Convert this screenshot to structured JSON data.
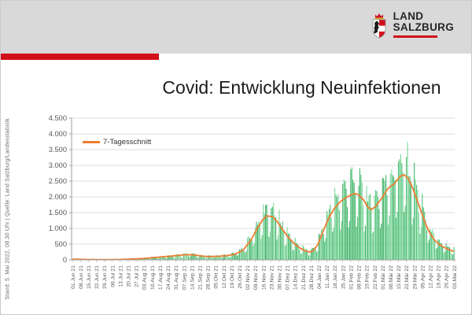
{
  "header": {
    "logo_line1": "LAND",
    "logo_line2": "SALZBURG",
    "brand_red": "#d2101a",
    "band_color": "#d9d9d9"
  },
  "title": "Covid: Entwicklung Neuinfektionen",
  "source_note": "Stand: 5. Mai 2022, 08.30 Uhr | Quelle: Land Salzburg/Landesstatistik",
  "chart_data": {
    "type": "bar",
    "title": "Covid: Entwicklung Neuinfektionen",
    "xlabel": "",
    "ylabel": "",
    "ylim": [
      0,
      4500
    ],
    "ytick_step": 500,
    "ytick_labels": [
      "0",
      "500",
      "1.000",
      "1.500",
      "2.000",
      "2.500",
      "3.000",
      "3.500",
      "4.000",
      "4.500"
    ],
    "grid": true,
    "legend": [
      "7-Tagesschnitt"
    ],
    "legend_position": "top-left",
    "x_start": "01.Jun 21",
    "x_end": "03.Mai 22",
    "num_days": 337,
    "xtick_labels": [
      "01.Jun 21",
      "08.Jun 21",
      "15.Jun 21",
      "22.Jun 21",
      "29.Jun 21",
      "06.Jul 21",
      "13.Jul 21",
      "20.Jul 21",
      "27.Jul 21",
      "03.Aug 21",
      "10.Aug 21",
      "17.Aug 21",
      "24.Aug 21",
      "31.Aug 21",
      "07.Sep 21",
      "14.Sep 21",
      "21.Sep 21",
      "28.Sep 21",
      "05.Okt 21",
      "12.Okt 21",
      "19.Okt 21",
      "26.Okt 21",
      "02.Nov 21",
      "09.Nov 21",
      "16.Nov 21",
      "23.Nov 21",
      "30.Nov 21",
      "07.Dez 21",
      "14.Dez 21",
      "21.Dez 21",
      "28.Dez 21",
      "04.Jan 22",
      "11.Jan 22",
      "18.Jan 22",
      "25.Jan 22",
      "01.Feb 22",
      "08.Feb 22",
      "15.Feb 22",
      "22.Feb 22",
      "01.Mär 22",
      "08.Mär 22",
      "15.Mär 22",
      "22.Mär 22",
      "29.Mär 22",
      "05.Apr 22",
      "12.Apr 22",
      "19.Apr 22",
      "26.Apr 22",
      "03.Mai 22"
    ],
    "series": [
      {
        "name": "",
        "type": "bar",
        "color": "#53c378"
      },
      {
        "name": "7-Tagesschnitt",
        "type": "line",
        "color": "#ED7D31"
      }
    ],
    "bar_colors": [
      "#3fb266",
      "#55c47b",
      "#7fd79c"
    ],
    "line_keypoints_day_value": [
      [
        0,
        25
      ],
      [
        7,
        18
      ],
      [
        14,
        12
      ],
      [
        21,
        10
      ],
      [
        30,
        8
      ],
      [
        40,
        12
      ],
      [
        50,
        25
      ],
      [
        61,
        40
      ],
      [
        70,
        70
      ],
      [
        80,
        100
      ],
      [
        92,
        135
      ],
      [
        99,
        165
      ],
      [
        106,
        160
      ],
      [
        113,
        125
      ],
      [
        120,
        105
      ],
      [
        129,
        115
      ],
      [
        136,
        135
      ],
      [
        143,
        180
      ],
      [
        150,
        300
      ],
      [
        157,
        620
      ],
      [
        162,
        950
      ],
      [
        167,
        1250
      ],
      [
        171,
        1400
      ],
      [
        176,
        1370
      ],
      [
        180,
        1230
      ],
      [
        185,
        960
      ],
      [
        190,
        720
      ],
      [
        195,
        520
      ],
      [
        200,
        380
      ],
      [
        205,
        285
      ],
      [
        209,
        250
      ],
      [
        212,
        290
      ],
      [
        216,
        480
      ],
      [
        220,
        850
      ],
      [
        225,
        1280
      ],
      [
        230,
        1600
      ],
      [
        235,
        1820
      ],
      [
        240,
        1960
      ],
      [
        245,
        2060
      ],
      [
        249,
        2110
      ],
      [
        252,
        2060
      ],
      [
        256,
        1920
      ],
      [
        260,
        1680
      ],
      [
        263,
        1590
      ],
      [
        267,
        1700
      ],
      [
        273,
        1990
      ],
      [
        277,
        2230
      ],
      [
        280,
        2340
      ],
      [
        283,
        2400
      ],
      [
        286,
        2540
      ],
      [
        289,
        2660
      ],
      [
        292,
        2700
      ],
      [
        295,
        2610
      ],
      [
        299,
        2330
      ],
      [
        303,
        1940
      ],
      [
        307,
        1540
      ],
      [
        311,
        1130
      ],
      [
        315,
        830
      ],
      [
        319,
        620
      ],
      [
        323,
        490
      ],
      [
        327,
        400
      ],
      [
        331,
        330
      ],
      [
        334,
        295
      ],
      [
        336,
        275
      ]
    ],
    "weekday_factors": [
      1.28,
      1.24,
      1.18,
      1.12,
      0.92,
      0.52,
      0.62
    ]
  }
}
